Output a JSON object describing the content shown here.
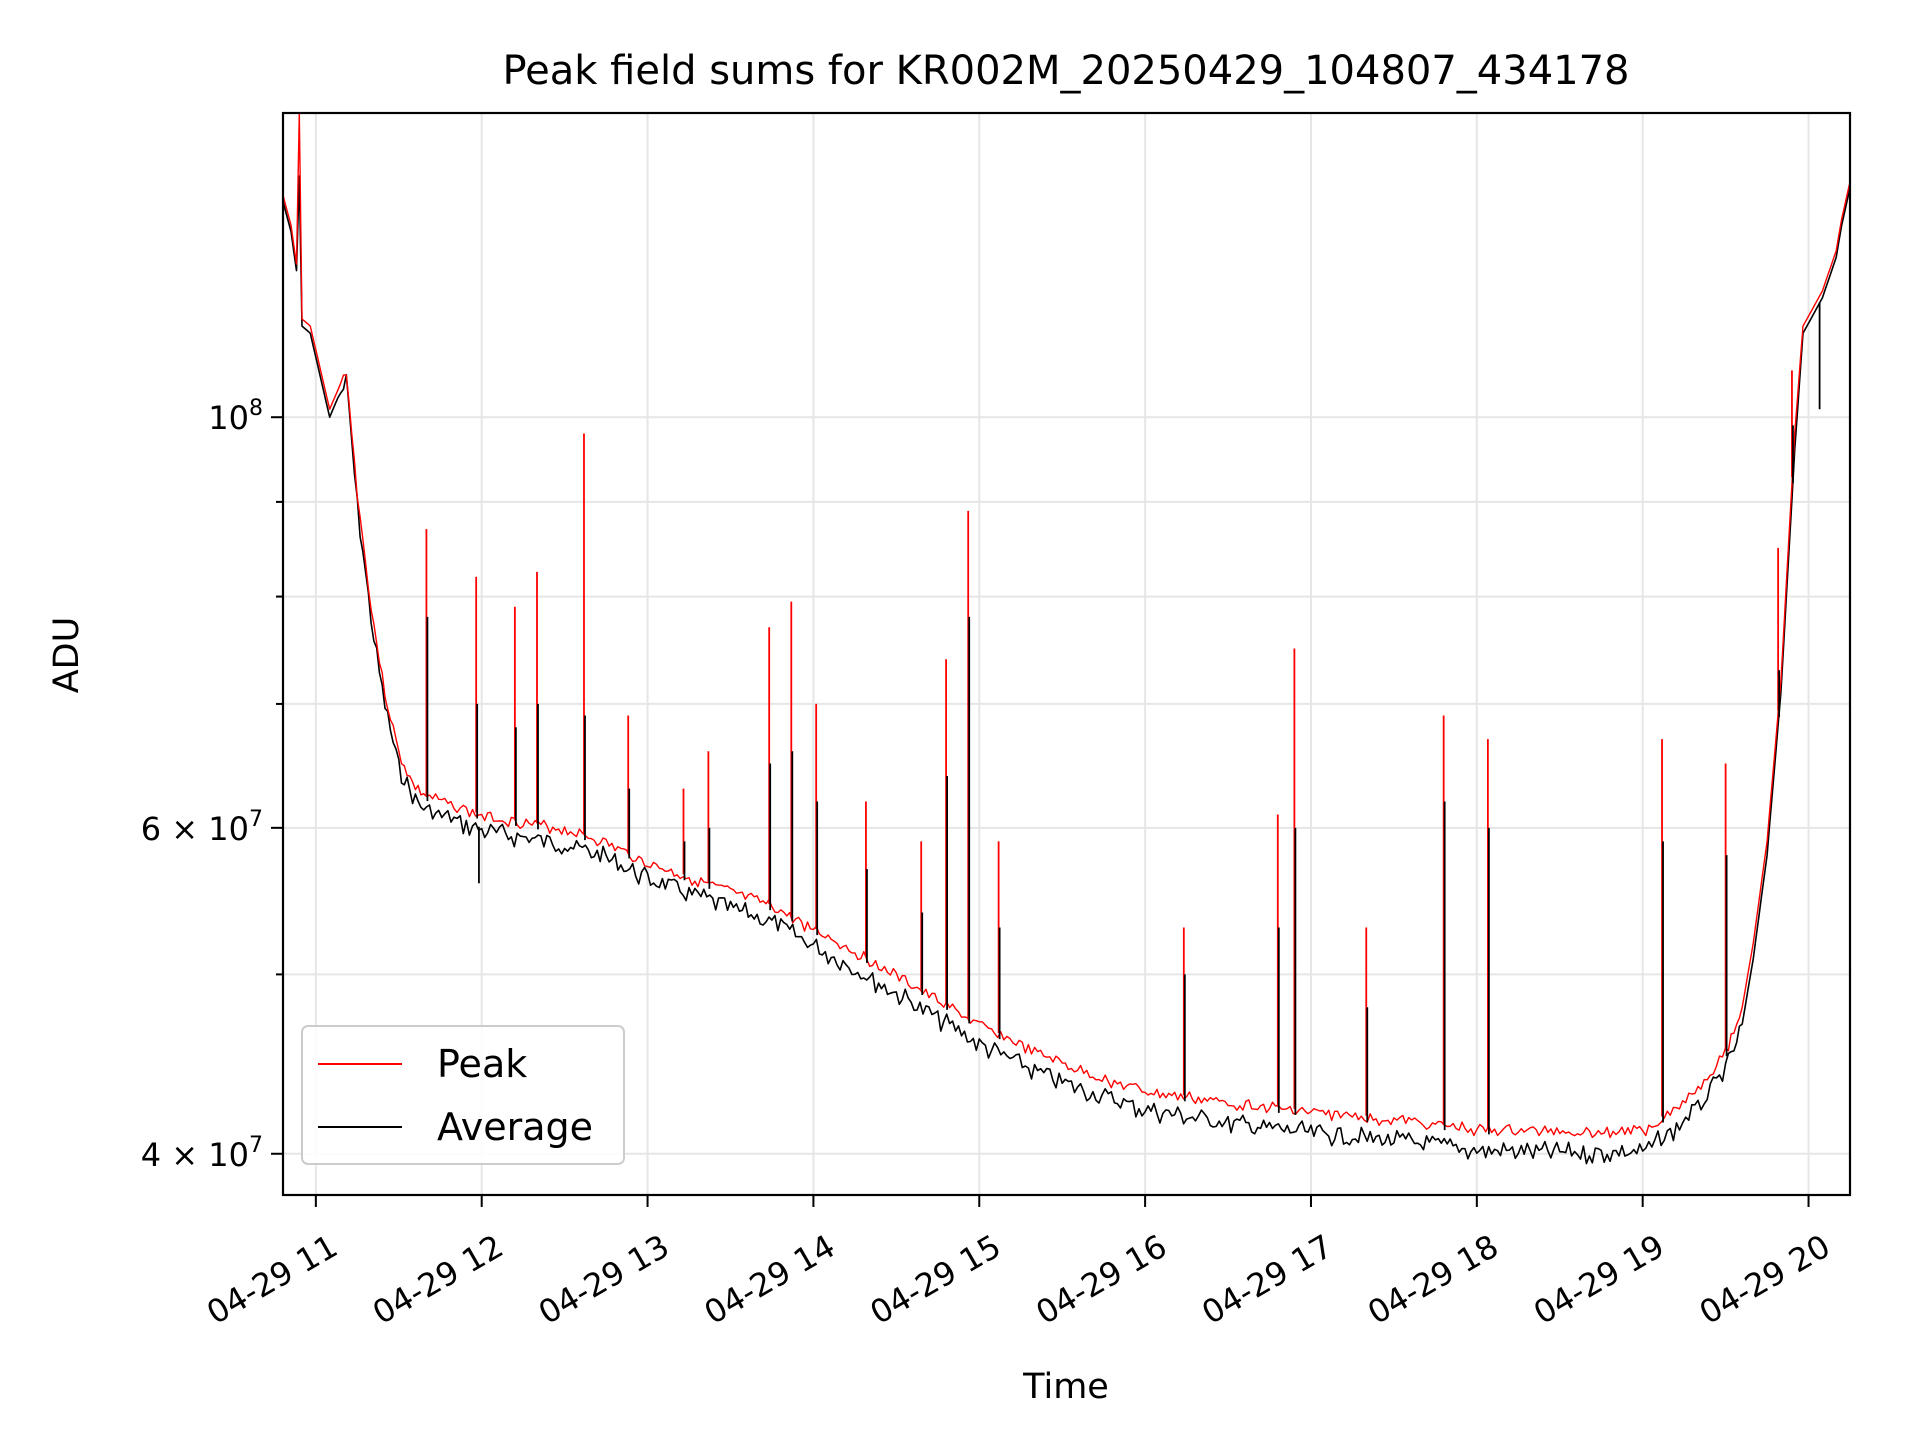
{
  "chart_data": {
    "type": "line",
    "title": "Peak field sums for KR002M_20250429_104807_434178",
    "xlabel": "Time",
    "ylabel": "ADU",
    "yscale": "log",
    "xlim": [
      "2025-04-29T10:48:07",
      "2025-04-29T20:15:00"
    ],
    "ylim": [
      38000000,
      146000000
    ],
    "grid": true,
    "legend_position": "lower-left",
    "x_ticks": [
      {
        "x": "2025-04-29T11:00",
        "label": "04-29 11"
      },
      {
        "x": "2025-04-29T12:00",
        "label": "04-29 12"
      },
      {
        "x": "2025-04-29T13:00",
        "label": "04-29 13"
      },
      {
        "x": "2025-04-29T14:00",
        "label": "04-29 14"
      },
      {
        "x": "2025-04-29T15:00",
        "label": "04-29 15"
      },
      {
        "x": "2025-04-29T16:00",
        "label": "04-29 16"
      },
      {
        "x": "2025-04-29T17:00",
        "label": "04-29 17"
      },
      {
        "x": "2025-04-29T18:00",
        "label": "04-29 18"
      },
      {
        "x": "2025-04-29T19:00",
        "label": "04-29 19"
      },
      {
        "x": "2025-04-29T20:00",
        "label": "04-29 20"
      }
    ],
    "y_major_ticks": [
      {
        "y": 100000000,
        "mantissa": "",
        "exponent": "8",
        "label": "10^8"
      },
      {
        "y": 60000000,
        "mantissa": "6",
        "exponent": "7",
        "label": "6 × 10^7"
      },
      {
        "y": 40000000,
        "mantissa": "4",
        "exponent": "7",
        "label": "4 × 10^7"
      }
    ],
    "y_minor_ticks": [
      50000000,
      70000000,
      80000000,
      90000000
    ],
    "series": [
      {
        "name": "Peak",
        "color": "#ff0000",
        "points": [
          [
            "2025-04-29T10:48",
            132000000
          ],
          [
            "2025-04-29T10:51",
            127000000
          ],
          [
            "2025-04-29T10:53",
            121000000
          ],
          [
            "2025-04-29T10:54",
            146000000
          ],
          [
            "2025-04-29T10:55",
            113000000
          ],
          [
            "2025-04-29T10:58",
            112000000
          ],
          [
            "2025-04-29T11:05",
            101000000
          ],
          [
            "2025-04-29T11:11",
            106000000
          ],
          [
            "2025-04-29T11:15",
            91000000
          ],
          [
            "2025-04-29T11:20",
            79000000
          ],
          [
            "2025-04-29T11:25",
            71000000
          ],
          [
            "2025-04-29T11:30",
            66000000
          ],
          [
            "2025-04-29T11:35",
            63500000
          ],
          [
            "2025-04-29T11:40",
            62500000
          ],
          [
            "2025-04-29T11:50",
            61800000
          ],
          [
            "2025-04-29T12:00",
            61000000
          ],
          [
            "2025-04-29T12:15",
            60500000
          ],
          [
            "2025-04-29T12:30",
            60000000
          ],
          [
            "2025-04-29T12:45",
            59000000
          ],
          [
            "2025-04-29T13:00",
            57500000
          ],
          [
            "2025-04-29T13:15",
            56500000
          ],
          [
            "2025-04-29T13:30",
            55500000
          ],
          [
            "2025-04-29T13:45",
            54500000
          ],
          [
            "2025-04-29T14:00",
            53000000
          ],
          [
            "2025-04-29T14:15",
            51500000
          ],
          [
            "2025-04-29T14:30",
            50000000
          ],
          [
            "2025-04-29T14:45",
            48500000
          ],
          [
            "2025-04-29T15:00",
            47000000
          ],
          [
            "2025-04-29T15:20",
            45500000
          ],
          [
            "2025-04-29T15:40",
            44200000
          ],
          [
            "2025-04-29T16:00",
            43300000
          ],
          [
            "2025-04-29T16:30",
            42700000
          ],
          [
            "2025-04-29T17:00",
            42200000
          ],
          [
            "2025-04-29T17:30",
            41800000
          ],
          [
            "2025-04-29T18:00",
            41300000
          ],
          [
            "2025-04-29T18:30",
            41200000
          ],
          [
            "2025-04-29T19:00",
            41200000
          ],
          [
            "2025-04-29T19:10",
            42200000
          ],
          [
            "2025-04-29T19:20",
            43500000
          ],
          [
            "2025-04-29T19:30",
            45500000
          ],
          [
            "2025-04-29T19:36",
            48000000
          ],
          [
            "2025-04-29T19:40",
            52000000
          ],
          [
            "2025-04-29T19:45",
            59000000
          ],
          [
            "2025-04-29T19:50",
            72000000
          ],
          [
            "2025-04-29T19:55",
            98000000
          ],
          [
            "2025-04-29T19:58",
            112000000
          ],
          [
            "2025-04-29T20:05",
            117000000
          ],
          [
            "2025-04-29T20:10",
            123000000
          ],
          [
            "2025-04-29T20:12",
            128000000
          ],
          [
            "2025-04-29T20:15",
            134000000
          ]
        ]
      },
      {
        "name": "Average",
        "color": "#000000",
        "points": [
          [
            "2025-04-29T10:48",
            131000000
          ],
          [
            "2025-04-29T10:51",
            126000000
          ],
          [
            "2025-04-29T10:53",
            120000000
          ],
          [
            "2025-04-29T10:54",
            135000000
          ],
          [
            "2025-04-29T10:55",
            112000000
          ],
          [
            "2025-04-29T10:58",
            111000000
          ],
          [
            "2025-04-29T11:05",
            100000000
          ],
          [
            "2025-04-29T11:11",
            105000000
          ],
          [
            "2025-04-29T11:15",
            90000000
          ],
          [
            "2025-04-29T11:20",
            78000000
          ],
          [
            "2025-04-29T11:25",
            70000000
          ],
          [
            "2025-04-29T11:30",
            65000000
          ],
          [
            "2025-04-29T11:35",
            62500000
          ],
          [
            "2025-04-29T11:40",
            61500000
          ],
          [
            "2025-04-29T11:50",
            60800000
          ],
          [
            "2025-04-29T12:00",
            60000000
          ],
          [
            "2025-04-29T12:15",
            59500000
          ],
          [
            "2025-04-29T12:30",
            59000000
          ],
          [
            "2025-04-29T12:45",
            58000000
          ],
          [
            "2025-04-29T13:00",
            56500000
          ],
          [
            "2025-04-29T13:15",
            55500000
          ],
          [
            "2025-04-29T13:30",
            54500000
          ],
          [
            "2025-04-29T13:45",
            53500000
          ],
          [
            "2025-04-29T14:00",
            52000000
          ],
          [
            "2025-04-29T14:15",
            50500000
          ],
          [
            "2025-04-29T14:30",
            49000000
          ],
          [
            "2025-04-29T14:45",
            47500000
          ],
          [
            "2025-04-29T15:00",
            46000000
          ],
          [
            "2025-04-29T15:20",
            44500000
          ],
          [
            "2025-04-29T15:40",
            43300000
          ],
          [
            "2025-04-29T16:00",
            42400000
          ],
          [
            "2025-04-29T16:30",
            41700000
          ],
          [
            "2025-04-29T17:00",
            41200000
          ],
          [
            "2025-04-29T17:30",
            40800000
          ],
          [
            "2025-04-29T18:00",
            40300000
          ],
          [
            "2025-04-29T18:30",
            40200000
          ],
          [
            "2025-04-29T19:00",
            40200000
          ],
          [
            "2025-04-29T19:10",
            41200000
          ],
          [
            "2025-04-29T19:20",
            42500000
          ],
          [
            "2025-04-29T19:30",
            44500000
          ],
          [
            "2025-04-29T19:36",
            47000000
          ],
          [
            "2025-04-29T19:40",
            51000000
          ],
          [
            "2025-04-29T19:45",
            58000000
          ],
          [
            "2025-04-29T19:50",
            71000000
          ],
          [
            "2025-04-29T19:55",
            96000000
          ],
          [
            "2025-04-29T19:58",
            111000000
          ],
          [
            "2025-04-29T20:05",
            116000000
          ],
          [
            "2025-04-29T20:10",
            122000000
          ],
          [
            "2025-04-29T20:12",
            127000000
          ],
          [
            "2025-04-29T20:15",
            133000000
          ]
        ],
        "dips": [
          [
            "2025-04-29T11:59",
            56000000
          ],
          [
            "2025-04-29T20:04",
            101000000
          ]
        ]
      }
    ],
    "spikes": [
      {
        "x": "2025-04-29T11:40",
        "peak": 87000000,
        "average": 78000000
      },
      {
        "x": "2025-04-29T11:58",
        "peak": 82000000,
        "average": 70000000
      },
      {
        "x": "2025-04-29T12:12",
        "peak": 79000000,
        "average": 68000000
      },
      {
        "x": "2025-04-29T12:20",
        "peak": 82500000,
        "average": 70000000
      },
      {
        "x": "2025-04-29T12:37",
        "peak": 98000000,
        "average": 69000000
      },
      {
        "x": "2025-04-29T12:53",
        "peak": 69000000,
        "average": 63000000
      },
      {
        "x": "2025-04-29T13:13",
        "peak": 63000000,
        "average": 59000000
      },
      {
        "x": "2025-04-29T13:22",
        "peak": 66000000,
        "average": 60000000
      },
      {
        "x": "2025-04-29T13:44",
        "peak": 77000000,
        "average": 65000000
      },
      {
        "x": "2025-04-29T13:52",
        "peak": 79500000,
        "average": 66000000
      },
      {
        "x": "2025-04-29T14:01",
        "peak": 70000000,
        "average": 62000000
      },
      {
        "x": "2025-04-29T14:19",
        "peak": 62000000,
        "average": 57000000
      },
      {
        "x": "2025-04-29T14:39",
        "peak": 59000000,
        "average": 54000000
      },
      {
        "x": "2025-04-29T14:48",
        "peak": 74000000,
        "average": 64000000
      },
      {
        "x": "2025-04-29T14:56",
        "peak": 89000000,
        "average": 78000000
      },
      {
        "x": "2025-04-29T15:07",
        "peak": 59000000,
        "average": 53000000
      },
      {
        "x": "2025-04-29T16:14",
        "peak": 53000000,
        "average": 50000000
      },
      {
        "x": "2025-04-29T16:48",
        "peak": 61000000,
        "average": 53000000
      },
      {
        "x": "2025-04-29T16:54",
        "peak": 75000000,
        "average": 60000000
      },
      {
        "x": "2025-04-29T17:20",
        "peak": 53000000,
        "average": 48000000
      },
      {
        "x": "2025-04-29T17:48",
        "peak": 69000000,
        "average": 62000000
      },
      {
        "x": "2025-04-29T18:04",
        "peak": 67000000,
        "average": 60000000
      },
      {
        "x": "2025-04-29T19:07",
        "peak": 67000000,
        "average": 59000000
      },
      {
        "x": "2025-04-29T19:30",
        "peak": 65000000,
        "average": 58000000
      },
      {
        "x": "2025-04-29T19:49",
        "peak": 85000000,
        "average": 73000000
      },
      {
        "x": "2025-04-29T19:54",
        "peak": 106000000,
        "average": 99000000
      }
    ]
  }
}
